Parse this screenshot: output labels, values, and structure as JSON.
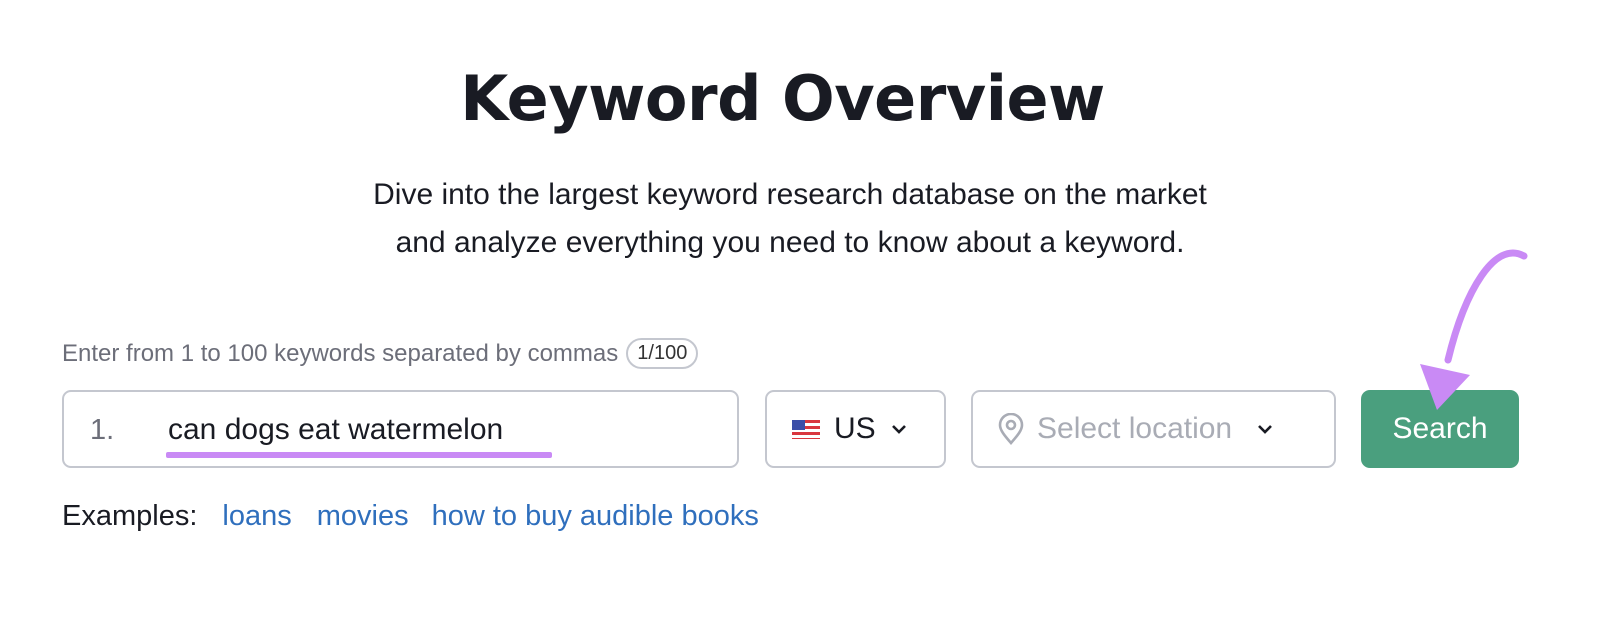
{
  "header": {
    "title": "Keyword Overview",
    "subtitle_line1": "Dive into the largest keyword research database on the market",
    "subtitle_line2": "and analyze everything you need to know about a keyword."
  },
  "form": {
    "hint": "Enter from 1 to 100 keywords separated by commas",
    "counter": "1/100",
    "keyword_number": "1.",
    "keyword_value": "can dogs eat watermelon",
    "database": {
      "flag_icon": "us-flag-icon",
      "value": "US"
    },
    "location": {
      "placeholder": "Select location",
      "icon": "location-pin-icon"
    },
    "search_label": "Search"
  },
  "examples": {
    "label": "Examples:",
    "links": [
      "loans",
      "movies",
      "how to buy audible books"
    ]
  },
  "colors": {
    "accent_green": "#4a9f7e",
    "link_blue": "#2f6fbd",
    "annotation_purple": "#c98af5"
  }
}
